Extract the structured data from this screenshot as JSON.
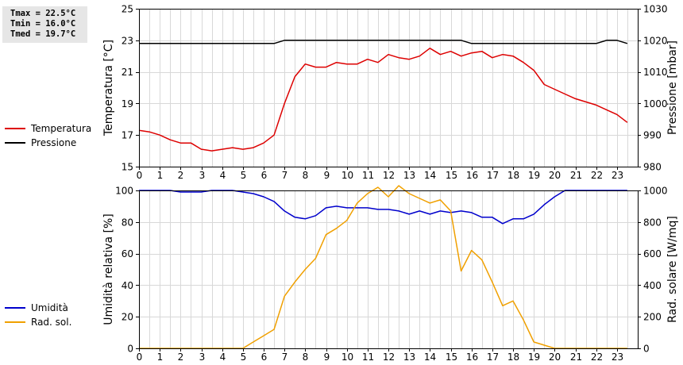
{
  "stats": {
    "tmax": "Tmax = 22.5°C",
    "tmin": "Tmin = 16.0°C",
    "tmed": "Tmed = 19.7°C"
  },
  "chart_data": [
    {
      "type": "line",
      "x_ticks": [
        "0",
        "1",
        "2",
        "3",
        "4",
        "5",
        "6",
        "7",
        "8",
        "9",
        "10",
        "11",
        "12",
        "13",
        "14",
        "15",
        "16",
        "17",
        "18",
        "19",
        "20",
        "21",
        "22",
        "23"
      ],
      "xlim": [
        0,
        24
      ],
      "ylabel": "Temperatura [°C]",
      "ylim": [
        15,
        25
      ],
      "y_ticks": [
        "15",
        "17",
        "19",
        "21",
        "23",
        "25"
      ],
      "y2label": "Pressione [mbar]",
      "y2lim": [
        980,
        1030
      ],
      "y2_ticks": [
        "980",
        "990",
        "1000",
        "1010",
        "1020",
        "1030"
      ],
      "grid": true,
      "legend_position": "left",
      "series": [
        {
          "name": "Temperatura",
          "axis": "left",
          "color": "#dd0000",
          "x": [
            0,
            0.5,
            1,
            1.5,
            2,
            2.5,
            3,
            3.5,
            4,
            4.5,
            5,
            5.5,
            6,
            6.5,
            7,
            7.5,
            8,
            8.5,
            9,
            9.5,
            10,
            10.5,
            11,
            11.5,
            12,
            12.5,
            13,
            13.5,
            14,
            14.5,
            15,
            15.5,
            16,
            16.5,
            17,
            17.5,
            18,
            18.5,
            19,
            19.5,
            20,
            20.5,
            21,
            21.5,
            22,
            22.5,
            23,
            23.5
          ],
          "y": [
            17.3,
            17.2,
            17.0,
            16.7,
            16.5,
            16.5,
            16.1,
            16.0,
            16.1,
            16.2,
            16.1,
            16.2,
            16.5,
            17.0,
            19.0,
            20.7,
            21.5,
            21.3,
            21.3,
            21.6,
            21.5,
            21.5,
            21.8,
            21.6,
            22.1,
            21.9,
            21.8,
            22.0,
            22.5,
            22.1,
            22.3,
            22.0,
            22.2,
            22.3,
            21.9,
            22.1,
            22.0,
            21.6,
            21.1,
            20.2,
            19.9,
            19.6,
            19.3,
            19.1,
            18.9,
            18.6,
            18.3,
            17.8
          ]
        },
        {
          "name": "Pressione",
          "axis": "right",
          "color": "#000000",
          "x": [
            0,
            1,
            2,
            3,
            4,
            5,
            6,
            6.5,
            7,
            8,
            9,
            10,
            11,
            12,
            13,
            14,
            15,
            15.5,
            16,
            17,
            18,
            19,
            20,
            21,
            21.5,
            22,
            22.5,
            23,
            23.5
          ],
          "y": [
            1019,
            1019,
            1019,
            1019,
            1019,
            1019,
            1019,
            1019,
            1020,
            1020,
            1020,
            1020,
            1020,
            1020,
            1020,
            1020,
            1020,
            1020,
            1019,
            1019,
            1019,
            1019,
            1019,
            1019,
            1019,
            1019,
            1020,
            1020,
            1019
          ]
        }
      ]
    },
    {
      "type": "line",
      "x_ticks": [
        "0",
        "1",
        "2",
        "3",
        "4",
        "5",
        "6",
        "7",
        "8",
        "9",
        "10",
        "11",
        "12",
        "13",
        "14",
        "15",
        "16",
        "17",
        "18",
        "19",
        "20",
        "21",
        "22",
        "23"
      ],
      "xlim": [
        0,
        24
      ],
      "ylabel": "Umidità relativa [%]",
      "ylim": [
        0,
        100
      ],
      "y_ticks": [
        "0",
        "20",
        "40",
        "60",
        "80",
        "100"
      ],
      "y2label": "Rad. solare [W/mq]",
      "y2lim": [
        0,
        1000
      ],
      "y2_ticks": [
        "0",
        "200",
        "400",
        "600",
        "800",
        "1000"
      ],
      "grid": true,
      "legend_position": "left",
      "series": [
        {
          "name": "Umidità",
          "axis": "left",
          "color": "#0000cc",
          "x": [
            0,
            1,
            1.5,
            2,
            2.5,
            3,
            3.5,
            4,
            4.5,
            5,
            5.5,
            6,
            6.5,
            7,
            7.5,
            8,
            8.5,
            9,
            9.5,
            10,
            10.5,
            11,
            11.5,
            12,
            12.5,
            13,
            13.5,
            14,
            14.5,
            15,
            15.5,
            16,
            16.5,
            17,
            17.5,
            18,
            18.5,
            19,
            19.5,
            20,
            20.5,
            21,
            22,
            23,
            23.5
          ],
          "y": [
            100,
            100,
            100,
            99,
            99,
            99,
            100,
            100,
            100,
            99,
            98,
            96,
            93,
            87,
            83,
            82,
            84,
            89,
            90,
            89,
            89,
            89,
            88,
            88,
            87,
            85,
            87,
            85,
            87,
            86,
            87,
            86,
            83,
            83,
            79,
            82,
            82,
            85,
            91,
            96,
            100,
            100,
            100,
            100,
            100
          ]
        },
        {
          "name": "Rad. sol.",
          "axis": "right",
          "color": "#f0a000",
          "x": [
            0,
            1,
            2,
            3,
            4,
            5,
            5.5,
            6,
            6.5,
            7,
            7.5,
            8,
            8.5,
            9,
            9.5,
            10,
            10.5,
            11,
            11.5,
            12,
            12.5,
            13,
            13.5,
            14,
            14.5,
            15,
            15.5,
            16,
            16.5,
            17,
            17.5,
            18,
            18.5,
            19,
            19.5,
            20,
            20.5,
            21,
            22,
            23,
            23.5
          ],
          "y": [
            0,
            0,
            0,
            0,
            0,
            0,
            40,
            80,
            120,
            330,
            420,
            500,
            570,
            720,
            760,
            810,
            920,
            980,
            1020,
            960,
            1030,
            980,
            950,
            920,
            940,
            870,
            490,
            620,
            560,
            420,
            270,
            300,
            180,
            40,
            20,
            0,
            0,
            0,
            0,
            0,
            0
          ]
        }
      ]
    }
  ]
}
